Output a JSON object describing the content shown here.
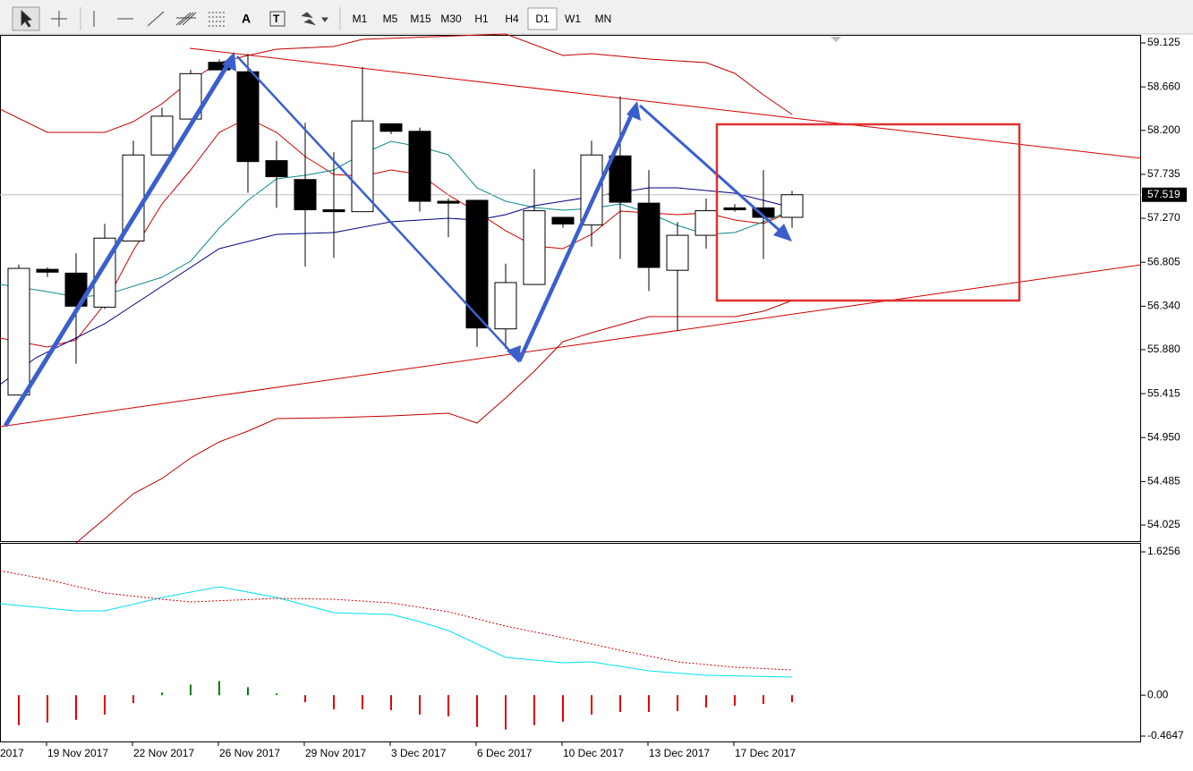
{
  "toolbar": {
    "timeframes": [
      "M1",
      "M5",
      "M15",
      "M30",
      "H1",
      "H4",
      "D1",
      "W1",
      "MN"
    ],
    "active": "D1"
  },
  "chart_data": {
    "type": "candlestick",
    "x_label_left": "2017",
    "categories": [
      null,
      "19 Nov 2017",
      null,
      null,
      "22 Nov 2017",
      null,
      null,
      "26 Nov 2017",
      null,
      null,
      "29 Nov 2017",
      null,
      null,
      "3 Dec 2017",
      null,
      null,
      "6 Dec 2017",
      null,
      null,
      "10 Dec 2017",
      null,
      null,
      "13 Dec 2017",
      null,
      null,
      "17 Dec 2017",
      null,
      null
    ],
    "open": [
      55.4,
      56.73,
      56.69,
      56.33,
      57.03,
      57.94,
      58.32,
      58.92,
      58.82,
      57.88,
      57.68,
      57.36,
      57.34,
      58.27,
      58.19,
      57.45,
      57.46,
      56.1,
      56.57,
      57.28,
      57.2,
      57.93,
      57.43,
      56.72,
      57.09,
      57.38,
      57.38,
      57.28
    ],
    "high": [
      56.78,
      56.75,
      56.9,
      57.21,
      58.09,
      58.44,
      58.84,
      58.95,
      59.01,
      58.09,
      58.28,
      57.97,
      58.87,
      58.27,
      58.23,
      57.48,
      57.46,
      56.79,
      57.79,
      57.28,
      58.09,
      58.56,
      57.78,
      57.23,
      57.48,
      57.42,
      57.78,
      57.56
    ],
    "low": [
      55.4,
      56.65,
      55.73,
      56.31,
      57.03,
      57.94,
      58.32,
      58.84,
      57.54,
      57.38,
      56.76,
      56.85,
      57.34,
      58.16,
      57.34,
      57.07,
      55.91,
      55.89,
      56.57,
      57.17,
      56.97,
      56.84,
      56.5,
      56.08,
      56.95,
      57.34,
      56.84,
      57.17
    ],
    "close": [
      56.74,
      56.7,
      56.34,
      57.06,
      57.94,
      58.35,
      58.8,
      58.84,
      57.87,
      57.71,
      57.36,
      57.34,
      58.3,
      58.19,
      57.45,
      57.43,
      56.11,
      56.59,
      57.35,
      57.21,
      57.94,
      57.44,
      56.75,
      57.09,
      57.35,
      57.36,
      57.28,
      57.519
    ],
    "ylim": [
      54.025,
      59.125
    ],
    "yticks": [
      59.125,
      {
        "value": 58.66,
        "label": "58.660"
      },
      {
        "value": 58.2,
        "label": "58.200"
      },
      57.735,
      {
        "value": 57.27,
        "label": "57.270"
      },
      56.805,
      {
        "value": 56.34,
        "label": "56.340"
      },
      {
        "value": 55.88,
        "label": "55.880"
      },
      55.415,
      {
        "value": 54.95,
        "label": "54.950"
      },
      54.485,
      54.025
    ],
    "current_price": 57.519,
    "up_color": "#ffffff",
    "down_color": "#000000",
    "indicator": {
      "type": "bar",
      "values": [
        -0.34,
        -0.31,
        -0.28,
        -0.22,
        -0.09,
        0.03,
        0.12,
        0.16,
        0.09,
        0.02,
        -0.08,
        -0.16,
        -0.16,
        -0.17,
        -0.22,
        -0.24,
        -0.36,
        -0.39,
        -0.34,
        -0.3,
        -0.22,
        -0.19,
        -0.19,
        -0.18,
        -0.14,
        -0.12,
        -0.1,
        -0.08
      ],
      "ylim": [
        -0.4647,
        1.6256
      ],
      "yticks": [
        1.6256,
        {
          "value": 0,
          "label": "0.00"
        },
        -0.4647
      ],
      "up_color": "#008000",
      "down_color": "#e00000"
    }
  }
}
